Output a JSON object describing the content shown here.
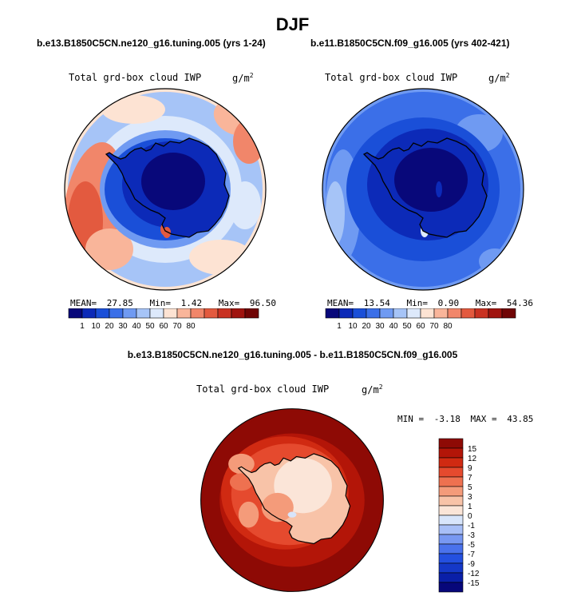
{
  "figure": {
    "season": "DJF",
    "panel1": {
      "case_title": "b.e13.B1850C5CN.ne120_g16.tuning.005 (yrs 1-24)",
      "variable": "Total grd-box cloud IWP",
      "units": "g/m",
      "units_exp": "2",
      "mean_label": "MEAN=",
      "mean": "27.85",
      "min_label": "Min=",
      "min": "1.42",
      "max_label": "Max=",
      "max": "96.50"
    },
    "panel2": {
      "case_title": "b.e11.B1850C5CN.f09_g16.005 (yrs 402-421)",
      "variable": "Total grd-box cloud IWP",
      "units": "g/m",
      "units_exp": "2",
      "mean_label": "MEAN=",
      "mean": "13.54",
      "min_label": "Min=",
      "min": "0.90",
      "max_label": "Max=",
      "max": "54.36"
    },
    "panel3": {
      "case_title": "b.e13.B1850C5CN.ne120_g16.tuning.005 - b.e11.B1850C5CN.f09_g16.005",
      "variable": "Total grd-box cloud IWP",
      "units": "g/m",
      "units_exp": "2",
      "min_label": "MIN =",
      "min": "-3.18",
      "max_label": "MAX =",
      "max": "43.85"
    }
  },
  "chart_data": [
    {
      "type": "heatmap",
      "projection": "south polar stereographic",
      "title": "b.e13.B1850C5CN.ne120_g16.tuning.005 (yrs 1-24)",
      "variable": "Total grd-box cloud IWP",
      "units": "g/m2",
      "stats": {
        "mean": 27.85,
        "min": 1.42,
        "max": 96.5
      },
      "colorbar": {
        "orientation": "horizontal",
        "levels": [
          1,
          10,
          20,
          30,
          40,
          50,
          60,
          70,
          80
        ],
        "tick_labels": [
          "1",
          "10",
          "20",
          "30",
          "40",
          "50",
          "60",
          "70",
          "80"
        ],
        "colors": [
          "#08087a",
          "#0c2ab8",
          "#1a4fd8",
          "#3b6fe8",
          "#6f9af2",
          "#a6c4f7",
          "#dde9fb",
          "#fde3d3",
          "#f9b59a",
          "#f1866a",
          "#e35a3f",
          "#c93222",
          "#a0140f",
          "#700505"
        ]
      }
    },
    {
      "type": "heatmap",
      "projection": "south polar stereographic",
      "title": "b.e11.B1850C5CN.f09_g16.005 (yrs 402-421)",
      "variable": "Total grd-box cloud IWP",
      "units": "g/m2",
      "stats": {
        "mean": 13.54,
        "min": 0.9,
        "max": 54.36
      },
      "colorbar": {
        "orientation": "horizontal",
        "levels": [
          1,
          10,
          20,
          30,
          40,
          50,
          60,
          70,
          80
        ],
        "tick_labels": [
          "1",
          "10",
          "20",
          "30",
          "40",
          "50",
          "60",
          "70",
          "80"
        ],
        "colors": [
          "#08087a",
          "#0c2ab8",
          "#1a4fd8",
          "#3b6fe8",
          "#6f9af2",
          "#a6c4f7",
          "#dde9fb",
          "#fde3d3",
          "#f9b59a",
          "#f1866a",
          "#e35a3f",
          "#c93222",
          "#a0140f",
          "#700505"
        ]
      }
    },
    {
      "type": "heatmap",
      "projection": "south polar stereographic",
      "title": "b.e13.B1850C5CN.ne120_g16.tuning.005 - b.e11.B1850C5CN.f09_g16.005",
      "variable": "Total grd-box cloud IWP",
      "units": "g/m2",
      "stats": {
        "min": -3.18,
        "max": 43.85
      },
      "colorbar": {
        "orientation": "vertical",
        "levels": [
          -15,
          -12,
          -9,
          -7,
          -5,
          -3,
          -1,
          0,
          1,
          3,
          5,
          7,
          9,
          12,
          15
        ],
        "tick_labels": [
          "-15",
          "-12",
          "-9",
          "-7",
          "-5",
          "-3",
          "-1",
          "0",
          "1",
          "3",
          "5",
          "7",
          "9",
          "12",
          "15"
        ],
        "colors": [
          "#07077a",
          "#0a1fa8",
          "#1538c8",
          "#2450e0",
          "#4a72ec",
          "#7898f2",
          "#a8bff7",
          "#d8e5fb",
          "#fbe5d8",
          "#f8c3a8",
          "#f49b7a",
          "#ee7150",
          "#e54a2e",
          "#d02a12",
          "#b31508",
          "#8e0a05"
        ]
      }
    }
  ]
}
